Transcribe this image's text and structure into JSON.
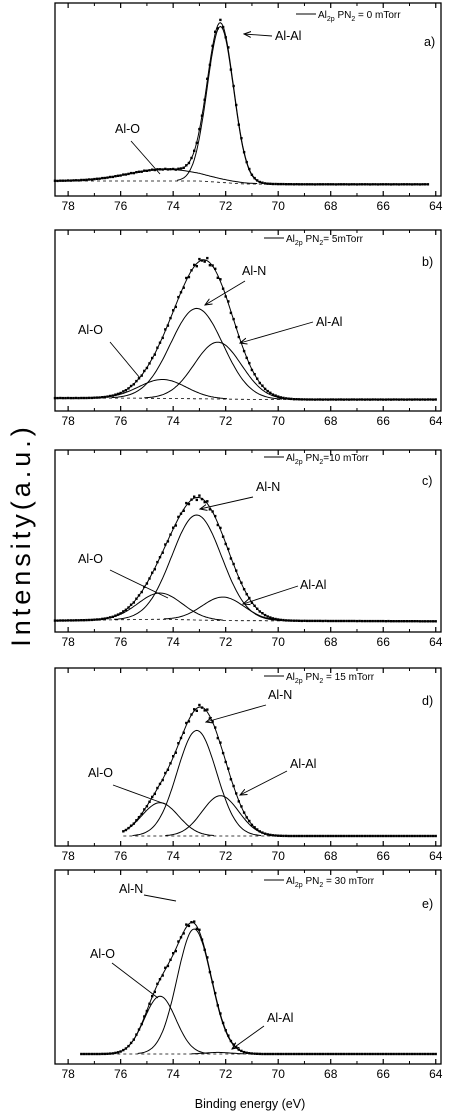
{
  "figure": {
    "ylabel": "Intensity(a.u.)",
    "xlabel": "Binding energy (eV)"
  },
  "chart_data": [
    {
      "type": "line",
      "panel": "a)",
      "legend": "Al2p PN2 = 0 mTorr",
      "legend_main": "Al",
      "legend_sub1": "2p",
      "legend_mid": " PN",
      "legend_sub2": "2",
      "legend_tail": " = 0 mTorr",
      "xlim": [
        78.5,
        63.8
      ],
      "ylim": [
        0,
        1.02
      ],
      "xticks": [
        78,
        76,
        74,
        72,
        70,
        68,
        66,
        64
      ],
      "xlabel": "",
      "ylabel": "",
      "components": [
        {
          "name": "Al-O",
          "center": 74.3,
          "height": 0.07,
          "width": 1.4
        },
        {
          "name": "Al-Al",
          "center": 72.2,
          "height": 0.93,
          "width": 0.5
        }
      ],
      "background": [
        [
          78.5,
          0.03
        ],
        [
          73.0,
          0.03
        ],
        [
          71.3,
          0.012
        ],
        [
          69.0,
          0.01
        ],
        [
          64.3,
          0.01
        ]
      ],
      "data_range": [
        78.5,
        64.3
      ],
      "annotations": [
        {
          "text": "Al-O",
          "target": "Al-O"
        },
        {
          "text": "Al-Al",
          "target": "Al-Al"
        }
      ],
      "grid": false
    },
    {
      "type": "line",
      "panel": "b)",
      "legend": "Al2p PN2= 5mTorr",
      "legend_main": "Al",
      "legend_sub1": "2p",
      "legend_mid": " PN",
      "legend_sub2": "2",
      "legend_tail": "= 5mTorr",
      "xlim": [
        78.5,
        63.8
      ],
      "ylim": [
        0,
        1.05
      ],
      "xticks": [
        78,
        76,
        74,
        72,
        70,
        68,
        66,
        64
      ],
      "xlabel": "",
      "ylabel": "",
      "components": [
        {
          "name": "Al-O",
          "center": 74.4,
          "height": 0.13,
          "width": 0.9
        },
        {
          "name": "Al-N",
          "center": 73.1,
          "height": 0.62,
          "width": 1.0
        },
        {
          "name": "Al-Al",
          "center": 72.3,
          "height": 0.39,
          "width": 0.9
        }
      ],
      "background": [
        [
          78.5,
          0.02
        ],
        [
          75.5,
          0.02
        ],
        [
          73.0,
          0.015
        ],
        [
          70.5,
          0.01
        ],
        [
          64.0,
          0.01
        ]
      ],
      "data_range": [
        78.5,
        64.0
      ],
      "annotations": [
        {
          "text": "Al-O",
          "target": "Al-O"
        },
        {
          "text": "Al-N",
          "target": "Al-N"
        },
        {
          "text": "Al-Al",
          "target": "Al-Al"
        }
      ],
      "grid": false
    },
    {
      "type": "line",
      "panel": "c)",
      "legend": "Al2p PN2=10 mTorr",
      "legend_main": "Al",
      "legend_sub1": "2p",
      "legend_mid": " PN",
      "legend_sub2": "2",
      "legend_tail": "=10 mTorr",
      "xlim": [
        78.5,
        63.8
      ],
      "ylim": [
        0,
        1.1
      ],
      "xticks": [
        78,
        76,
        74,
        72,
        70,
        68,
        66,
        64
      ],
      "xlabel": "",
      "ylabel": "",
      "components": [
        {
          "name": "Al-O",
          "center": 74.5,
          "height": 0.19,
          "width": 0.85
        },
        {
          "name": "Al-N",
          "center": 73.1,
          "height": 0.76,
          "width": 0.95
        },
        {
          "name": "Al-Al",
          "center": 72.1,
          "height": 0.17,
          "width": 0.8
        }
      ],
      "background": [
        [
          78.5,
          0.01
        ],
        [
          74.5,
          0.02
        ],
        [
          72.0,
          0.01
        ],
        [
          64.0,
          0.005
        ]
      ],
      "data_range": [
        78.5,
        64.0
      ],
      "annotations": [
        {
          "text": "Al-O",
          "target": "Al-O"
        },
        {
          "text": "Al-N",
          "target": "Al-N"
        },
        {
          "text": "Al-Al",
          "target": "Al-Al"
        }
      ],
      "grid": false
    },
    {
      "type": "line",
      "panel": "d)",
      "legend": "Al2p PN2 = 15 mTorr",
      "legend_main": "Al",
      "legend_sub1": "2p",
      "legend_mid": " PN",
      "legend_sub2": "2",
      "legend_tail": " = 15 mTorr",
      "xlim": [
        78.5,
        63.8
      ],
      "ylim": [
        0,
        1.08
      ],
      "xticks": [
        78,
        76,
        74,
        72,
        70,
        68,
        66,
        64
      ],
      "xlabel": "",
      "ylabel": "",
      "components": [
        {
          "name": "Al-O",
          "center": 74.5,
          "height": 0.24,
          "width": 0.7
        },
        {
          "name": "Al-N",
          "center": 73.1,
          "height": 0.76,
          "width": 0.75
        },
        {
          "name": "Al-Al",
          "center": 72.2,
          "height": 0.29,
          "width": 0.7
        }
      ],
      "background": [
        [
          75.9,
          0.0
        ],
        [
          64.0,
          0.0
        ]
      ],
      "data_range": [
        75.9,
        64.0
      ],
      "annotations": [
        {
          "text": "Al-O",
          "target": "Al-O"
        },
        {
          "text": "Al-N",
          "target": "Al-N"
        },
        {
          "text": "Al-Al",
          "target": "Al-Al"
        }
      ],
      "grid": false
    },
    {
      "type": "line",
      "panel": "e)",
      "legend": "Al2p PN2 = 30 mTorr",
      "legend_main": "Al",
      "legend_sub1": "2p",
      "legend_mid": " PN",
      "legend_sub2": "2",
      "legend_tail": " = 30 mTorr",
      "xlim": [
        78.5,
        63.8
      ],
      "ylim": [
        0,
        1.05
      ],
      "xticks": [
        78,
        76,
        74,
        72,
        70,
        68,
        66,
        64
      ],
      "xlabel": "Binding energy (eV)",
      "ylabel": "",
      "components": [
        {
          "name": "Al-O",
          "center": 74.5,
          "height": 0.37,
          "width": 0.6
        },
        {
          "name": "Al-N",
          "center": 73.2,
          "height": 0.8,
          "width": 0.65
        },
        {
          "name": "Al-Al",
          "center": 72.3,
          "height": 0.01,
          "width": 0.5
        }
      ],
      "background": [
        [
          77.5,
          0.0
        ],
        [
          64.0,
          0.0
        ]
      ],
      "data_range": [
        77.5,
        64.0
      ],
      "annotations": [
        {
          "text": "Al-N",
          "target": "Al-N"
        },
        {
          "text": "Al-O",
          "target": "Al-O"
        },
        {
          "text": "Al-Al",
          "target": "Al-Al"
        }
      ],
      "grid": false
    }
  ]
}
